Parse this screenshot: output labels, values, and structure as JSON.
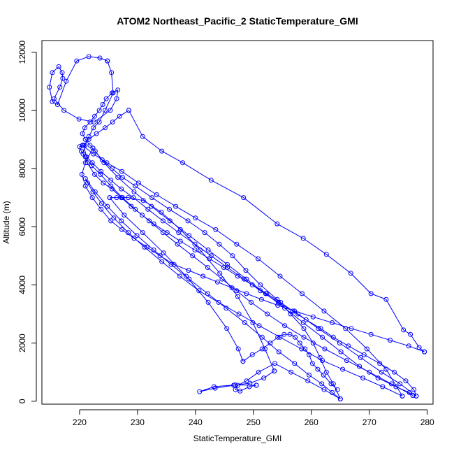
{
  "chart_data": {
    "type": "scatter",
    "mode": "lines+markers",
    "title": "ATOM2 Northeast_Pacific_2 StaticTemperature_GMI",
    "xlabel": "StaticTemperature_GMI",
    "ylabel": "Altitude (m)",
    "xlim": [
      213.5,
      281.0
    ],
    "ylim": [
      -100,
      12400
    ],
    "xticks": [
      220,
      230,
      240,
      250,
      260,
      270,
      280
    ],
    "yticks": [
      0,
      2000,
      4000,
      6000,
      8000,
      10000,
      12000
    ],
    "grid": false,
    "color": "#0000ff",
    "marker": "open-circle",
    "series": [
      {
        "x": [
          265.0,
          263.8,
          262.6,
          261.5,
          260.3,
          258.7,
          256.4,
          254.1,
          251.2,
          248.7,
          246.4,
          244.1,
          241.6,
          238.7,
          235.5,
          232.5,
          229.6,
          227.4,
          225.6,
          223.9,
          222.7,
          221.8,
          221.0,
          220.5,
          220.9,
          221.8,
          222.6,
          223.4,
          224.0,
          224.6,
          225.6,
          226.6,
          226.4,
          225.3,
          222.5,
          219.9,
          217.3,
          215.6,
          216.6,
          217.1,
          217.0,
          216.4,
          215.3,
          214.8,
          215.3,
          216.2,
          217.7,
          219.5,
          221.6,
          223.5,
          224.8
        ],
        "y": [
          80,
          600,
          1000,
          1500,
          2000,
          2500,
          3000,
          3500,
          4000,
          4500,
          5000,
          5400,
          5800,
          6200,
          6600,
          7000,
          7400,
          7700,
          8000,
          8300,
          8600,
          8800,
          9000,
          9200,
          9400,
          9600,
          9800,
          10000,
          10200,
          10400,
          10600,
          10700,
          10400,
          10000,
          9600,
          9700,
          10000,
          10400,
          10800,
          11100,
          11300,
          11500,
          11300,
          10800,
          10300,
          10200,
          11000,
          11700,
          11850,
          11800,
          11700
        ]
      },
      {
        "x": [
          224.8,
          225.5,
          225.8,
          224.4,
          223.4,
          222.4,
          221.6,
          220.9,
          220.6,
          221.3,
          222.6,
          224.1,
          225.6,
          227.2,
          228.9,
          230.8,
          232.8,
          235.1,
          237.4,
          239.9,
          242.4,
          244.9,
          247.3,
          249.8,
          252.3,
          254.7,
          256.8,
          259.1,
          261.6,
          263.8,
          266.4,
          269.1,
          271.8,
          274.3,
          276.3,
          277.7,
          278.1
        ],
        "y": [
          11700,
          11300,
          10600,
          10000,
          9600,
          9400,
          9100,
          8800,
          8500,
          8200,
          7800,
          7500,
          7300,
          7000,
          6700,
          6400,
          6100,
          5800,
          5500,
          5200,
          4900,
          4600,
          4300,
          4000,
          3700,
          3400,
          3100,
          2800,
          2500,
          2200,
          1900,
          1600,
          1300,
          1000,
          700,
          400,
          180
        ]
      },
      {
        "x": [
          278.1,
          275.3,
          272.1,
          268.5,
          264.9,
          261.2,
          257.7,
          254.3,
          251.2,
          248.4,
          245.5,
          242.7,
          239.9,
          237.1,
          234.4,
          231.8,
          229.3,
          227.2,
          225.4,
          223.7,
          222.2,
          221.2,
          220.7,
          221.6,
          222.9,
          224.4,
          225.7,
          226.9,
          228.5
        ],
        "y": [
          180,
          600,
          1000,
          1500,
          2000,
          2500,
          3000,
          3400,
          3800,
          4200,
          4600,
          5000,
          5400,
          5800,
          6200,
          6600,
          7000,
          7300,
          7600,
          7900,
          8200,
          8400,
          8800,
          9000,
          9200,
          9400,
          9600,
          9800,
          10000
        ]
      },
      {
        "x": [
          228.5,
          230.9,
          234.2,
          237.8,
          242.7,
          248.3,
          254.1,
          258.6,
          262.6,
          266.8,
          270.3,
          272.9,
          275.9,
          277.1,
          278.6,
          279.5
        ],
        "y": [
          10000,
          9100,
          8600,
          8200,
          7600,
          7000,
          6100,
          5600,
          5050,
          4400,
          3700,
          3500,
          2450,
          2300,
          1850,
          1700
        ]
      },
      {
        "x": [
          279.5,
          276.8,
          273.6,
          270.3,
          266.9,
          263.6,
          260.3,
          257.1,
          254.2,
          251.4,
          248.8,
          246.3,
          243.8,
          241.3,
          238.8,
          236.3,
          233.9,
          231.6,
          229.4,
          227.3,
          225.4,
          223.7,
          222.2,
          221.0,
          220.4,
          221.0,
          222.3
        ],
        "y": [
          1700,
          1900,
          2100,
          2300,
          2500,
          2700,
          2900,
          3100,
          3300,
          3500,
          3700,
          3900,
          4100,
          4300,
          4500,
          4700,
          5000,
          5300,
          5600,
          5900,
          6200,
          6600,
          7000,
          7400,
          7800,
          8200,
          8700
        ]
      },
      {
        "x": [
          222.3,
          224.2,
          226.6,
          229.4,
          232.4,
          235.6,
          238.9,
          242.2,
          245.5,
          248.8,
          252.1,
          255.4,
          258.6,
          261.9,
          265.1,
          268.3,
          271.5,
          274.6,
          276.9,
          277.5
        ],
        "y": [
          8700,
          8200,
          7700,
          7200,
          6700,
          6200,
          5700,
          5200,
          4700,
          4200,
          3700,
          3200,
          2700,
          2200,
          1700,
          1200,
          800,
          500,
          300,
          200
        ]
      },
      {
        "x": [
          277.5,
          273.8,
          270.0,
          266.1,
          262.3,
          258.7,
          255.4,
          252.4,
          249.6,
          247.1,
          244.6,
          242.1,
          239.5,
          236.9,
          234.4,
          232.0,
          229.6,
          227.4,
          225.4,
          223.6,
          222.1,
          221.0,
          220.3,
          220.0,
          220.5
        ],
        "y": [
          200,
          600,
          1000,
          1400,
          1800,
          2200,
          2600,
          3000,
          3400,
          3800,
          4200,
          4600,
          5000,
          5400,
          5800,
          6200,
          6600,
          7000,
          7400,
          7800,
          8100,
          8400,
          8600,
          8750,
          8800
        ]
      },
      {
        "x": [
          220.5,
          222.4,
          224.7,
          227.3,
          230.2,
          233.3,
          236.6,
          240.0,
          243.5,
          247.1,
          250.8,
          254.6,
          258.4,
          262.2,
          265.9,
          269.6,
          272.9,
          275.7
        ],
        "y": [
          8800,
          8500,
          8200,
          7900,
          7500,
          7100,
          6700,
          6300,
          5900,
          5400,
          4900,
          4300,
          3700,
          3100,
          2500,
          1800,
          1100,
          180
        ]
      },
      {
        "x": [
          275.7,
          272.3,
          268.9,
          265.4,
          261.9,
          258.3,
          254.6,
          251.0,
          247.5,
          244.0,
          240.6,
          237.3,
          234.2,
          231.2,
          228.4,
          225.9,
          223.8,
          222.3,
          221.4,
          221.0
        ],
        "y": [
          180,
          500,
          800,
          1100,
          1400,
          1800,
          2200,
          2600,
          3000,
          3400,
          3800,
          4300,
          4800,
          5300,
          5800,
          6300,
          6800,
          7200,
          7500,
          7650
        ]
      },
      {
        "x": [
          221.0,
          222.7,
          224.8,
          227.2,
          229.9,
          232.8,
          235.8,
          238.9,
          242.1,
          245.3,
          248.5,
          251.5,
          254.4,
          257.1,
          259.6,
          261.8,
          263.6,
          265.0
        ],
        "y": [
          7650,
          7200,
          6700,
          6200,
          5700,
          5200,
          4700,
          4200,
          3700,
          3200,
          2700,
          2200,
          1700,
          1300,
          900,
          600,
          300,
          80
        ]
      },
      {
        "x": [
          265.0,
          262.2,
          259.4,
          256.5,
          253.7,
          250.9,
          248.8,
          247.3,
          246.9,
          247.7,
          249.3,
          250.5
        ],
        "y": [
          80,
          400,
          700,
          1000,
          1300,
          1000,
          700,
          550,
          400,
          350,
          500,
          550
        ]
      },
      {
        "x": [
          250.5,
          246.8,
          243.2,
          240.7,
          243.4,
          246.6,
          249.4,
          251.8,
          253.6
        ],
        "y": [
          550,
          560,
          500,
          330,
          450,
          550,
          620,
          800,
          1040
        ]
      },
      {
        "x": [
          253.6,
          252.0,
          249.9,
          247.3,
          244.2,
          240.8,
          237.4,
          234.1,
          231.0,
          228.4,
          226.4,
          225.2
        ],
        "y": [
          1040,
          1800,
          2700,
          3600,
          4400,
          5200,
          5900,
          6500,
          6900,
          7000,
          7000,
          7000
        ]
      },
      {
        "x": [
          225.2,
          227.7,
          230.9,
          234.5,
          238.4,
          242.2,
          245.4,
          247.4,
          248.2
        ],
        "y": [
          7000,
          6400,
          5800,
          5100,
          4300,
          3400,
          2500,
          1800,
          1370
        ]
      },
      {
        "x": [
          248.2,
          249.8,
          251.5,
          252.9,
          254.2,
          255.3,
          256.3,
          257.2,
          258.0,
          258.9,
          259.6,
          260.2,
          261.1,
          262.1,
          263.4,
          264.5
        ],
        "y": [
          1370,
          1600,
          1800,
          2000,
          2200,
          2300,
          2300,
          2200,
          2000,
          1800,
          1600,
          1300,
          1100,
          900,
          600,
          400
        ]
      }
    ]
  }
}
